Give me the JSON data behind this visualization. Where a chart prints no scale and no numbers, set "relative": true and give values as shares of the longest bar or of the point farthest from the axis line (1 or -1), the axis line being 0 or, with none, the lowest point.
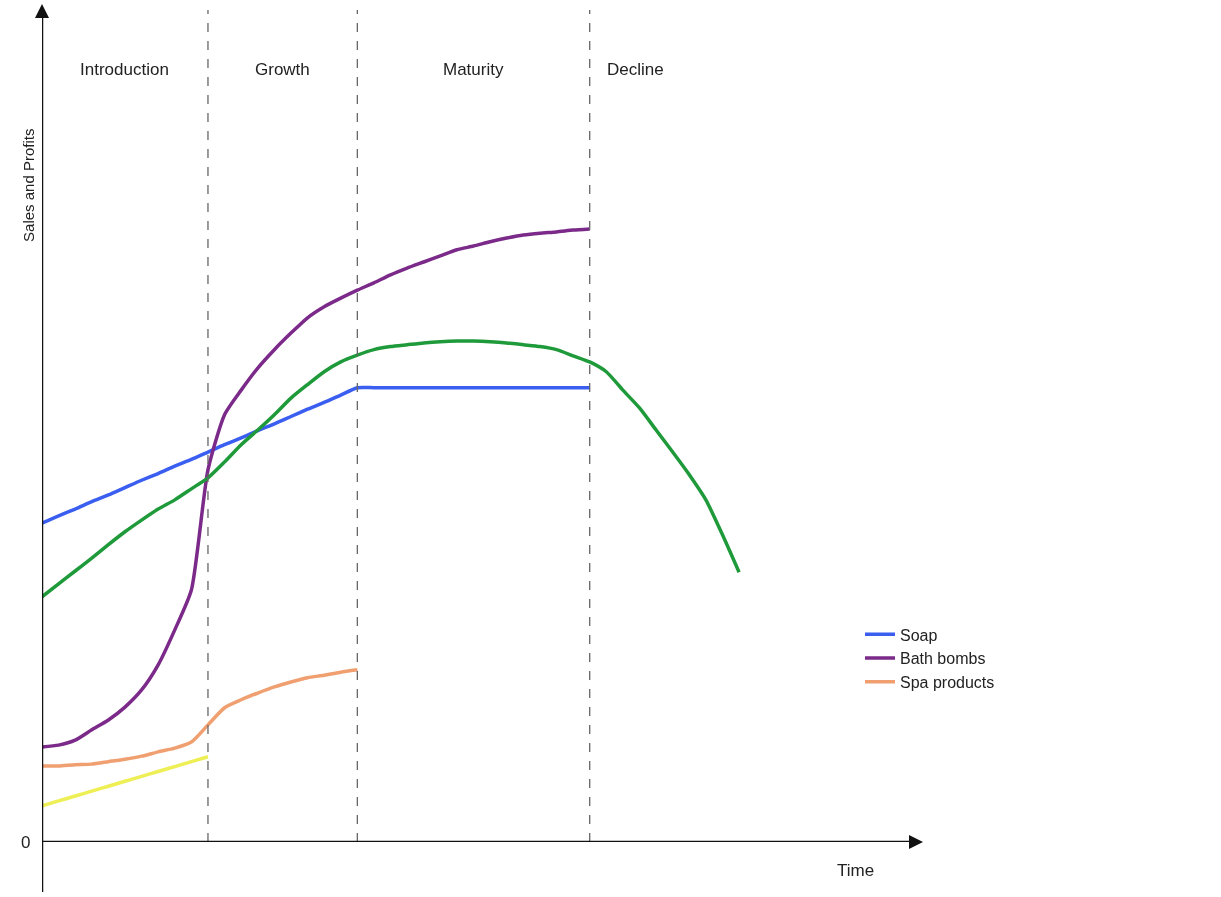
{
  "chart_data": {
    "type": "line",
    "relative": true,
    "xlabel": "Time",
    "ylabel": "Sales and Profits",
    "legend": "bottom right",
    "line_style": "solid",
    "marker": "none",
    "grid": "x",
    "categories": [
      null,
      null,
      null,
      null,
      null,
      null,
      null,
      null,
      null,
      null,
      null,
      null,
      null,
      null,
      null,
      null,
      null,
      null,
      null,
      null,
      null,
      null,
      null,
      null,
      null,
      null,
      null,
      null,
      null,
      null,
      null,
      null,
      null,
      null,
      null,
      null,
      null,
      null,
      null,
      null,
      null,
      null,
      null,
      null,
      null,
      null,
      null,
      null,
      null,
      null,
      null,
      null,
      null
    ],
    "annotations": [
      "Introduction",
      "Growth",
      "Maturity",
      "Decline",
      "0"
    ],
    "series": [
      {
        "name": "Soap",
        "color": "#3a5ef0",
        "values": [
          0.52,
          0.532,
          0.543,
          0.555,
          0.566,
          0.578,
          0.59,
          0.601,
          0.613,
          0.624,
          0.636,
          0.648,
          0.659,
          0.671,
          0.682,
          0.694,
          0.706,
          0.717,
          0.729,
          0.741,
          0.741,
          0.741,
          0.741,
          0.741,
          0.741,
          0.741,
          0.741,
          0.741,
          0.741,
          0.741,
          0.741,
          0.741,
          0.741,
          0.741,
          null,
          null,
          null,
          null,
          null,
          null,
          null,
          null,
          null,
          null,
          null,
          null,
          null,
          null,
          null,
          null,
          null,
          null,
          null
        ]
      },
      {
        "name": "Bath bombs",
        "color": "#7b2a8a",
        "values": [
          0.155,
          0.158,
          0.166,
          0.183,
          0.199,
          0.22,
          0.248,
          0.289,
          0.346,
          0.411,
          0.607,
          0.697,
          0.737,
          0.773,
          0.803,
          0.83,
          0.855,
          0.873,
          0.887,
          0.9,
          0.912,
          0.925,
          0.936,
          0.946,
          0.956,
          0.966,
          0.972,
          0.979,
          0.985,
          0.99,
          0.993,
          0.995,
          0.998,
          1,
          null,
          null,
          null,
          null,
          null,
          null,
          null,
          null,
          null,
          null,
          null,
          null,
          null,
          null,
          null,
          null,
          null,
          null,
          null
        ]
      },
      {
        "name": "Spa products",
        "color": "#f0a070",
        "values": [
          0.124,
          0.124,
          0.126,
          0.127,
          0.131,
          0.135,
          0.14,
          0.147,
          0.153,
          0.163,
          0.191,
          0.219,
          0.232,
          0.243,
          0.253,
          0.261,
          0.268,
          0.272,
          0.277,
          0.281,
          null,
          null,
          null,
          null,
          null,
          null,
          null,
          null,
          null,
          null,
          null,
          null,
          null,
          null,
          null,
          null,
          null,
          null,
          null,
          null,
          null,
          null,
          null,
          null,
          null,
          null,
          null,
          null,
          null,
          null,
          null,
          null,
          null
        ]
      },
      {
        "color": "#eeee55",
        "values": [
          0.059,
          0.067,
          0.075,
          0.083,
          0.091,
          0.099,
          0.107,
          0.115,
          0.123,
          0.131,
          0.139,
          null,
          null,
          null,
          null,
          null,
          null,
          null,
          null,
          null,
          null,
          null,
          null,
          null,
          null,
          null,
          null,
          null,
          null,
          null,
          null,
          null,
          null,
          null,
          null,
          null,
          null,
          null,
          null,
          null,
          null,
          null,
          null,
          null,
          null,
          null,
          null,
          null,
          null,
          null,
          null,
          null,
          null
        ]
      },
      {
        "color": "#1f9a3a",
        "values": [
          0.4,
          0.421,
          0.442,
          0.463,
          0.485,
          0.506,
          0.525,
          0.543,
          0.558,
          0.576,
          0.594,
          0.62,
          0.648,
          0.672,
          0.697,
          0.724,
          0.746,
          0.767,
          0.783,
          0.794,
          0.803,
          0.808,
          0.811,
          0.814,
          0.816,
          0.817,
          0.817,
          0.816,
          0.814,
          0.811,
          0.808,
          0.803,
          0.793,
          0.783,
          0.767,
          0.737,
          0.708,
          0.672,
          0.636,
          0.599,
          0.558,
          0.501,
          0.44,
          null,
          null,
          null,
          null,
          null,
          null,
          null,
          null,
          null,
          null
        ]
      }
    ]
  }
}
